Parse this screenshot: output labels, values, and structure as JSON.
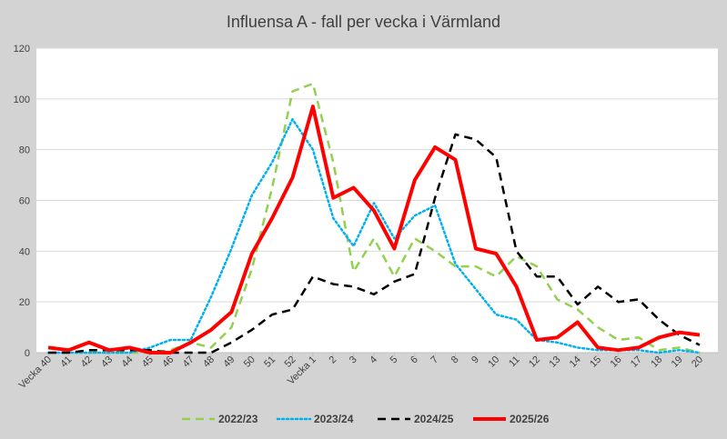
{
  "chart_data": {
    "type": "line",
    "title": "Influensa A - fall per vecka i Värmland",
    "xlabel": "",
    "ylabel": "",
    "ylim": [
      0,
      120
    ],
    "yticks": [
      0,
      20,
      40,
      60,
      80,
      100,
      120
    ],
    "grid": true,
    "legend_position": "bottom",
    "categories": [
      "Vecka 40",
      "41",
      "42",
      "43",
      "44",
      "45",
      "46",
      "47",
      "48",
      "49",
      "50",
      "51",
      "52",
      "Vecka 1",
      "2",
      "3",
      "4",
      "5",
      "6",
      "7",
      "8",
      "9",
      "10",
      "11",
      "12",
      "13",
      "14",
      "15",
      "16",
      "17",
      "18",
      "19",
      "20"
    ],
    "series": [
      {
        "name": "2022/23",
        "color": "#92d050",
        "dash": "dashed",
        "values": [
          0,
          0,
          0,
          0,
          0,
          0,
          1,
          4,
          2,
          10,
          33,
          65,
          103,
          106,
          75,
          32,
          45,
          30,
          45,
          40,
          34,
          34,
          30,
          38,
          34,
          21,
          17,
          10,
          5,
          6,
          1,
          2,
          0
        ]
      },
      {
        "name": "2023/24",
        "color": "#00b0f0",
        "dash": "dotted",
        "values": [
          0,
          0,
          0,
          0,
          0,
          2,
          5,
          5,
          22,
          41,
          62,
          75,
          92,
          80,
          53,
          42,
          59,
          45,
          54,
          58,
          35,
          25,
          15,
          13,
          5,
          4,
          2,
          1,
          1,
          1,
          0,
          1,
          0
        ]
      },
      {
        "name": "2024/25",
        "color": "#000000",
        "dash": "dashed",
        "values": [
          0,
          0,
          1,
          1,
          1,
          1,
          0,
          0,
          0,
          4,
          9,
          15,
          17,
          30,
          27,
          26,
          23,
          28,
          31,
          61,
          86,
          84,
          77,
          40,
          30,
          30,
          19,
          26,
          20,
          21,
          13,
          7,
          3
        ]
      },
      {
        "name": "2025/26",
        "color": "#ff0000",
        "dash": "solid",
        "values": [
          2,
          1,
          4,
          1,
          2,
          0,
          0,
          4,
          9,
          16,
          39,
          53,
          69,
          97,
          61,
          65,
          56,
          41,
          68,
          81,
          76,
          41,
          39,
          26,
          5,
          6,
          12,
          2,
          1,
          2,
          6,
          8,
          7
        ]
      }
    ]
  }
}
